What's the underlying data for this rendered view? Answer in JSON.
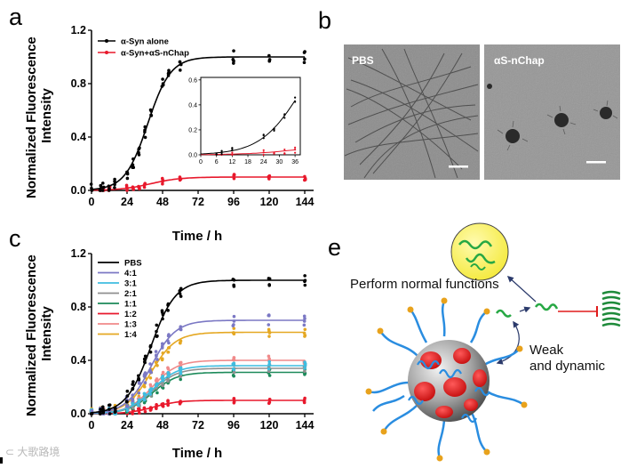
{
  "panels": {
    "a": "a",
    "b": "b",
    "c": "c",
    "e": "e"
  },
  "chart_data": [
    {
      "type": "scatter",
      "title": "",
      "xlabel": "Time / h",
      "ylabel": "Normalized Fluorescence Intensity",
      "ylabel_lines": [
        "Normalized Fluorescence",
        "Intensity"
      ],
      "xlim": [
        0,
        150
      ],
      "ylim": [
        0,
        1.2
      ],
      "xticks": [
        0,
        24,
        48,
        72,
        96,
        120,
        144
      ],
      "yticks": [
        0.0,
        0.4,
        0.8,
        1.2
      ],
      "ytick_labels": [
        "0.0",
        "0.4",
        "0.8",
        "1.2"
      ],
      "series": [
        {
          "name": "α-Syn alone",
          "color": "#000000",
          "plateau": 1.0,
          "midpoint": 38,
          "rate": 0.13,
          "x": [
            0,
            6,
            8,
            12,
            16,
            24,
            28,
            32,
            36,
            40,
            48,
            52,
            60,
            96,
            120,
            144
          ]
        },
        {
          "name": "α-Syn+αS-nChap",
          "color": "#e8192c",
          "plateau": 0.1,
          "midpoint": 40,
          "rate": 0.1,
          "x": [
            6,
            8,
            12,
            24,
            28,
            32,
            36,
            48,
            60,
            96,
            120,
            144
          ]
        }
      ],
      "inset": {
        "xlim": [
          0,
          38
        ],
        "ylim": [
          0,
          0.62
        ],
        "xticks": [
          0,
          6,
          12,
          18,
          24,
          30,
          36
        ],
        "yticks": [
          0.0,
          0.2,
          0.4,
          0.6
        ],
        "ytick_labels": [
          "0.0",
          "0.2",
          "0.4",
          "0.6"
        ]
      }
    },
    {
      "type": "scatter",
      "title": "",
      "xlabel": "Time / h",
      "ylabel": "Normalized Fluorescence Intensity",
      "ylabel_lines": [
        "Normalized Fluorescence",
        "Intensity"
      ],
      "xlim": [
        0,
        150
      ],
      "ylim": [
        0,
        1.2
      ],
      "xticks": [
        0,
        24,
        48,
        72,
        96,
        120,
        144
      ],
      "yticks": [
        0.0,
        0.4,
        0.8,
        1.2
      ],
      "ytick_labels": [
        "0.0",
        "0.4",
        "0.8",
        "1.2"
      ],
      "legend": "top-left",
      "series": [
        {
          "name": "PBS",
          "color": "#000000",
          "plateau": 1.0,
          "midpoint": 40
        },
        {
          "name": "4:1",
          "color": "#7b78c4",
          "plateau": 0.7,
          "midpoint": 40
        },
        {
          "name": "3:1",
          "color": "#3fbde0",
          "plateau": 0.36,
          "midpoint": 41
        },
        {
          "name": "2:1",
          "color": "#8f8f8f",
          "plateau": 0.34,
          "midpoint": 41
        },
        {
          "name": "1:1",
          "color": "#1c8a5a",
          "plateau": 0.31,
          "midpoint": 41
        },
        {
          "name": "1:2",
          "color": "#e8192c",
          "plateau": 0.1,
          "midpoint": 42
        },
        {
          "name": "1:3",
          "color": "#f08a8a",
          "plateau": 0.4,
          "midpoint": 41
        },
        {
          "name": "1:4",
          "color": "#e5a823",
          "plateau": 0.61,
          "midpoint": 40
        }
      ]
    }
  ],
  "panel_b": {
    "left_label": "PBS",
    "right_label": "αS-nChap"
  },
  "panel_e": {
    "text_top": "Perform normal functions",
    "text_weak": "Weak",
    "text_dynamic": "and dynamic"
  },
  "watermark": "⊂ 大歌路境"
}
